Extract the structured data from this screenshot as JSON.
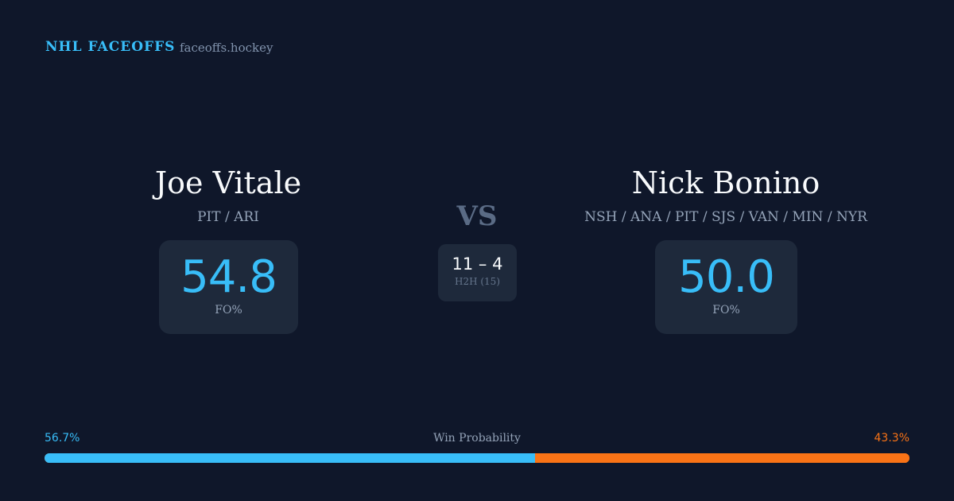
{
  "header": {
    "brand": "NHL FACEOFFS",
    "domain": "faceoffs.hockey"
  },
  "player1": {
    "name": "Joe Vitale",
    "teams": "PIT / ARI",
    "fo_pct": "54.8",
    "fo_label": "FO%"
  },
  "player2": {
    "name": "Nick Bonino",
    "teams": "NSH / ANA / PIT / SJS / VAN / MIN / NYR",
    "fo_pct": "50.0",
    "fo_label": "FO%"
  },
  "vs": "VS",
  "h2h": {
    "score": "11 – 4",
    "label": "H2H (15)"
  },
  "win_probability": {
    "label": "Win Probability",
    "p1_text": "56.7%",
    "p2_text": "43.3%",
    "p1_value": 56.7,
    "p1_color": "#38bdf8",
    "p2_color": "#f97316"
  }
}
